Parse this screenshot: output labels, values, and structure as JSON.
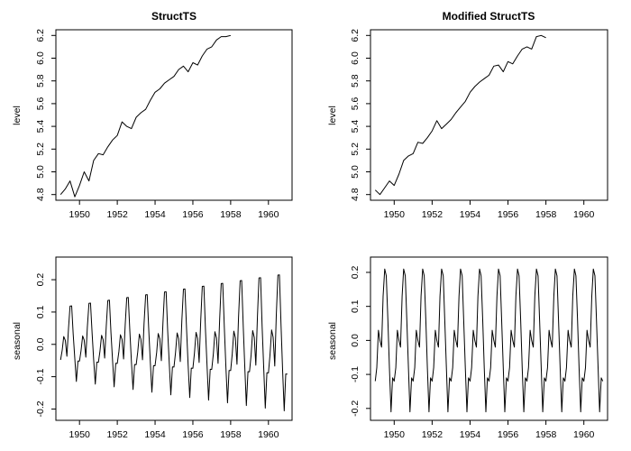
{
  "chart_data": [
    {
      "id": "level_structts",
      "type": "line",
      "title": "StructTS",
      "xlabel": "",
      "ylabel": "level",
      "xlim": [
        1948.75,
        1961.25
      ],
      "ylim": [
        4.75,
        6.25
      ],
      "xticks": [
        1950,
        1952,
        1954,
        1956,
        1958,
        1960
      ],
      "xtick_labels": [
        "1950",
        "1952",
        "1954",
        "1956",
        "1958",
        "1960"
      ],
      "yticks": [
        4.8,
        5.0,
        5.2,
        5.4,
        5.6,
        5.8,
        6.0,
        6.2
      ],
      "ytick_labels": [
        "4.8",
        "5.0",
        "5.2",
        "5.4",
        "5.6",
        "5.8",
        "6.0",
        "6.2"
      ],
      "grid": false,
      "series": [
        {
          "x_start": 1949.0,
          "x_step": 0.25,
          "values": [
            4.8,
            4.85,
            4.92,
            4.78,
            4.88,
            5.0,
            4.92,
            5.1,
            5.16,
            5.15,
            5.22,
            5.28,
            5.32,
            5.44,
            5.4,
            5.38,
            5.48,
            5.52,
            5.55,
            5.63,
            5.7,
            5.73,
            5.78,
            5.81,
            5.84,
            5.9,
            5.93,
            5.88,
            5.96,
            5.94,
            6.02,
            6.08,
            6.1,
            6.16,
            6.19,
            6.19,
            6.2
          ]
        }
      ]
    },
    {
      "id": "level_modified",
      "type": "line",
      "title": "Modified StructTS",
      "xlabel": "",
      "ylabel": "level",
      "xlim": [
        1948.75,
        1961.25
      ],
      "ylim": [
        4.75,
        6.25
      ],
      "xticks": [
        1950,
        1952,
        1954,
        1956,
        1958,
        1960
      ],
      "xtick_labels": [
        "1950",
        "1952",
        "1954",
        "1956",
        "1958",
        "1960"
      ],
      "yticks": [
        4.8,
        5.0,
        5.2,
        5.4,
        5.6,
        5.8,
        6.0,
        6.2
      ],
      "ytick_labels": [
        "4.8",
        "5.0",
        "5.2",
        "5.4",
        "5.6",
        "5.8",
        "6.0",
        "6.2"
      ],
      "grid": false,
      "series": [
        {
          "x_start": 1949.0,
          "x_step": 0.25,
          "values": [
            4.84,
            4.8,
            4.86,
            4.92,
            4.88,
            4.98,
            5.1,
            5.14,
            5.16,
            5.26,
            5.25,
            5.3,
            5.36,
            5.45,
            5.38,
            5.42,
            5.46,
            5.52,
            5.57,
            5.62,
            5.7,
            5.75,
            5.79,
            5.82,
            5.85,
            5.93,
            5.94,
            5.88,
            5.97,
            5.95,
            6.02,
            6.08,
            6.1,
            6.08,
            6.19,
            6.2,
            6.18
          ]
        }
      ]
    },
    {
      "id": "seasonal_structts",
      "type": "line",
      "title": "",
      "xlabel": "",
      "ylabel": "seasonal",
      "xlim": [
        1948.75,
        1961.25
      ],
      "ylim": [
        -0.235,
        0.27
      ],
      "xticks": [
        1950,
        1952,
        1954,
        1956,
        1958,
        1960
      ],
      "xtick_labels": [
        "1950",
        "1952",
        "1954",
        "1956",
        "1958",
        "1960"
      ],
      "yticks": [
        -0.2,
        -0.1,
        0.0,
        0.1,
        0.2
      ],
      "ytick_labels": [
        "-0.2",
        "-0.1",
        "0.0",
        "0.1",
        "0.2"
      ],
      "grid": false,
      "series": [
        {
          "x_start": 1949.0,
          "x_step": 0.08333333,
          "periods": 12,
          "amplitude_start": 0.6,
          "amplitude_end": 1.15,
          "pattern": [
            -0.08,
            -0.03,
            0.04,
            0.02,
            -0.06,
            0.08,
            0.19,
            0.19,
            0.05,
            -0.07,
            -0.18,
            -0.08
          ]
        }
      ]
    },
    {
      "id": "seasonal_modified",
      "type": "line",
      "title": "",
      "xlabel": "",
      "ylabel": "seasonal",
      "xlim": [
        1948.75,
        1961.25
      ],
      "ylim": [
        -0.235,
        0.245
      ],
      "xticks": [
        1950,
        1952,
        1954,
        1956,
        1958,
        1960
      ],
      "xtick_labels": [
        "1950",
        "1952",
        "1954",
        "1956",
        "1958",
        "1960"
      ],
      "yticks": [
        -0.2,
        -0.1,
        0.0,
        0.1,
        0.2
      ],
      "ytick_labels": [
        "-0.2",
        "-0.1",
        "0.0",
        "0.1",
        "0.2"
      ],
      "grid": false,
      "series": [
        {
          "x_start": 1949.0,
          "x_step": 0.08333333,
          "periods": 12,
          "amplitude_start": 1.0,
          "amplitude_end": 1.0,
          "pattern": [
            -0.12,
            -0.08,
            0.03,
            0.0,
            -0.02,
            0.13,
            0.21,
            0.19,
            0.06,
            -0.08,
            -0.21,
            -0.11
          ]
        }
      ]
    }
  ]
}
